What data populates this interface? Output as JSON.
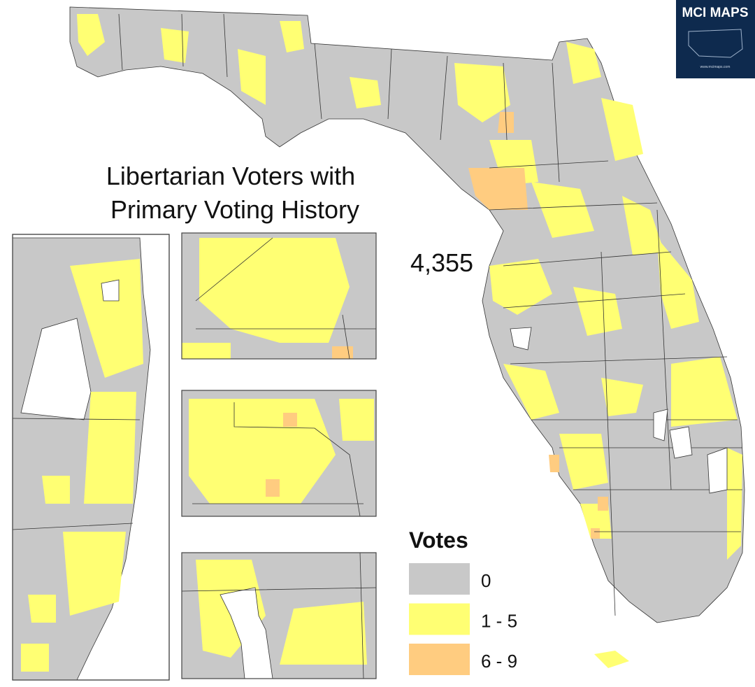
{
  "title": {
    "lines": [
      "Libertarian Voters with",
      "Primary Voting History"
    ]
  },
  "total": "4,355",
  "legend": {
    "title": "Votes",
    "items": [
      {
        "label": "0",
        "color": "#c8c8c8"
      },
      {
        "label": "1 - 5",
        "color": "#ffff73"
      },
      {
        "label": "6 - 9",
        "color": "#ffcc80"
      }
    ]
  },
  "logo": {
    "name": "MCI MAPS",
    "url": "www.mcimaps.com"
  }
}
